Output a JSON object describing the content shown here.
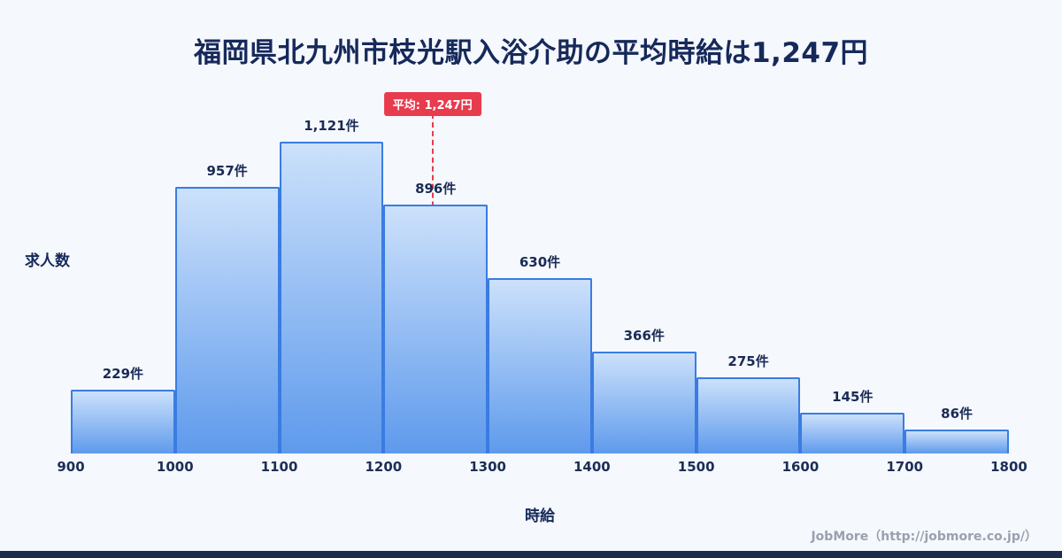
{
  "header": {
    "title": "福岡県北九州市枝光駅入浴介助の平均時給は1,247円"
  },
  "axes": {
    "y_label": "求人数",
    "x_label": "時給"
  },
  "footer": {
    "credit": "JobMore（http://jobmore.co.jp/）"
  },
  "chart_data": {
    "type": "bar",
    "title": "福岡県北九州市枝光駅入浴介助の平均時給は1,247円",
    "xlabel": "時給",
    "ylabel": "求人数",
    "bin_edges": [
      900,
      1000,
      1100,
      1200,
      1300,
      1400,
      1500,
      1600,
      1700,
      1800
    ],
    "values": [
      229,
      957,
      1121,
      896,
      630,
      366,
      275,
      145,
      86
    ],
    "value_labels": [
      "229件",
      "957件",
      "1,121件",
      "896件",
      "630件",
      "366件",
      "275件",
      "145件",
      "86件"
    ],
    "average": 1247,
    "average_label": "平均: 1,247円",
    "x_range": [
      900,
      1800
    ],
    "ylim": [
      0,
      1200
    ],
    "grid": false,
    "legend": "none",
    "colors": {
      "background": "#f5f8fd",
      "title_text": "#16295a",
      "bar_gradient_top": "#cce1fb",
      "bar_gradient_bottom": "#5e9aec",
      "bar_border": "#3a7ce1",
      "average_line": "#e83b4e",
      "bottom_bar": "#1e2b4d"
    }
  }
}
